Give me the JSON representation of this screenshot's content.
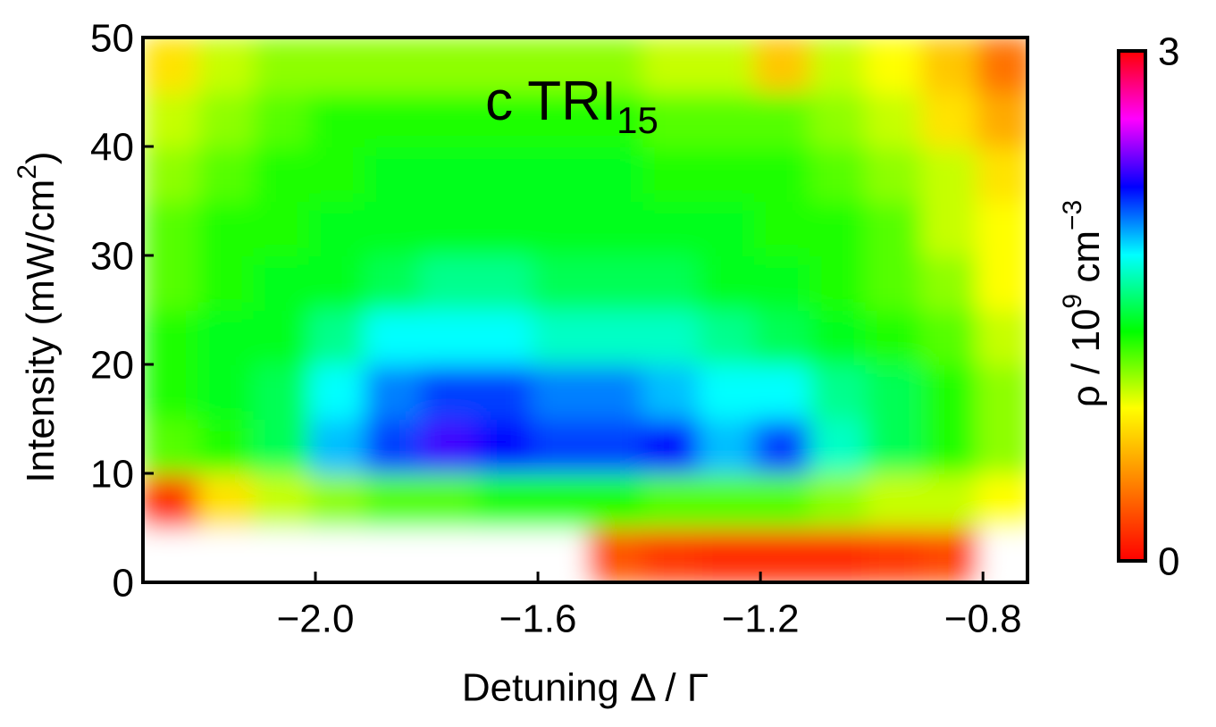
{
  "chart_data": {
    "type": "heatmap",
    "title": "c TRI",
    "title_subscript": "15",
    "xlabel": "Detuning Δ / Γ",
    "ylabel": [
      "Intensity (mW/cm",
      "2",
      ")"
    ],
    "colorbar_label": [
      "ρ / 10",
      "9",
      " cm",
      "−3"
    ],
    "x": [
      -2.26,
      -2.16,
      -2.06,
      -1.96,
      -1.86,
      -1.76,
      -1.66,
      -1.56,
      -1.46,
      -1.36,
      -1.26,
      -1.16,
      -1.06,
      -0.96,
      -0.86,
      -0.76
    ],
    "y": [
      2.5,
      7.5,
      12.5,
      17.5,
      22.5,
      27.5,
      32.5,
      37.5,
      42.5,
      47.5
    ],
    "z": [
      [
        null,
        null,
        null,
        null,
        null,
        null,
        null,
        null,
        0.3,
        0.2,
        0.15,
        0.15,
        0.15,
        0.2,
        0.25,
        null
      ],
      [
        0.2,
        0.8,
        1.0,
        1.1,
        1.2,
        1.2,
        1.3,
        1.3,
        1.3,
        1.2,
        1.2,
        1.2,
        1.1,
        1.0,
        1.0,
        0.9
      ],
      [
        1.2,
        1.3,
        1.5,
        1.9,
        2.1,
        2.3,
        2.2,
        2.1,
        2.1,
        2.2,
        1.9,
        2.1,
        1.7,
        1.5,
        1.3,
        1.1
      ],
      [
        1.3,
        1.4,
        1.5,
        1.8,
        2.0,
        2.1,
        2.1,
        2.0,
        2.0,
        1.9,
        1.8,
        1.8,
        1.6,
        1.5,
        1.3,
        1.1
      ],
      [
        1.3,
        1.4,
        1.4,
        1.6,
        1.8,
        1.8,
        1.8,
        1.7,
        1.7,
        1.7,
        1.6,
        1.5,
        1.4,
        1.3,
        1.2,
        1.0
      ],
      [
        1.2,
        1.3,
        1.4,
        1.4,
        1.5,
        1.6,
        1.6,
        1.5,
        1.5,
        1.5,
        1.4,
        1.4,
        1.3,
        1.2,
        1.1,
        0.9
      ],
      [
        1.2,
        1.3,
        1.3,
        1.4,
        1.4,
        1.4,
        1.4,
        1.4,
        1.4,
        1.4,
        1.4,
        1.3,
        1.3,
        1.2,
        1.0,
        0.9
      ],
      [
        1.1,
        1.2,
        1.3,
        1.3,
        1.4,
        1.4,
        1.4,
        1.4,
        1.4,
        1.3,
        1.3,
        1.3,
        1.2,
        1.1,
        1.0,
        0.8
      ],
      [
        1.0,
        1.1,
        1.2,
        1.3,
        1.3,
        1.3,
        1.3,
        1.3,
        1.3,
        1.2,
        1.2,
        1.2,
        1.1,
        1.0,
        0.8,
        0.6
      ],
      [
        0.8,
        1.0,
        1.1,
        1.1,
        1.1,
        1.1,
        1.1,
        1.1,
        1.1,
        1.0,
        1.0,
        0.7,
        1.0,
        0.9,
        0.7,
        0.4
      ]
    ],
    "xlim": [
      -2.31,
      -0.72
    ],
    "xticks": [
      {
        "value": -2,
        "label": "−2.0"
      },
      {
        "value": -1.6,
        "label": "−1.6"
      },
      {
        "value": -1.2,
        "label": "−1.2"
      },
      {
        "value": -0.8,
        "label": "−0.8"
      }
    ],
    "ylim": [
      0,
      50
    ],
    "yticks": [
      0,
      10,
      20,
      30,
      40,
      50
    ],
    "zlim": [
      0,
      3
    ],
    "zticks": [
      0,
      3
    ],
    "colorscale": [
      [
        0,
        "#ff0000"
      ],
      [
        0.45,
        "#ff8000"
      ],
      [
        0.9,
        "#ffff00"
      ],
      [
        1.35,
        "#00ff00"
      ],
      [
        1.8,
        "#00ffff"
      ],
      [
        2.2,
        "#0000ff"
      ],
      [
        2.6,
        "#ff00ff"
      ],
      [
        3,
        "#ff0000"
      ]
    ]
  }
}
